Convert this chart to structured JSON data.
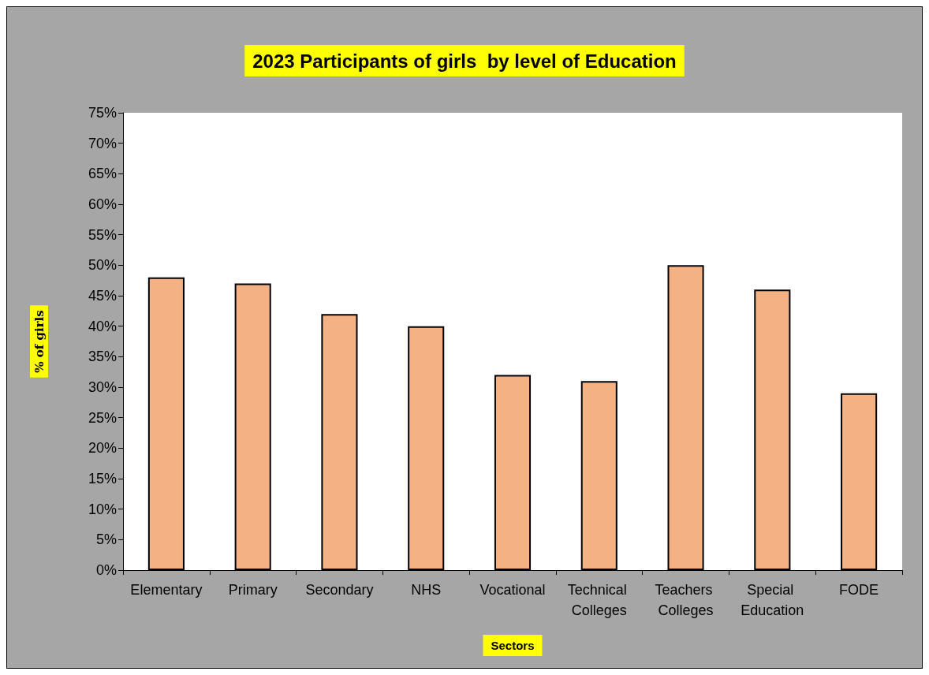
{
  "chart_data": {
    "type": "bar",
    "title": "2023 Participants of girls  by level of Education",
    "xlabel": "Sectors",
    "ylabel": "% of girls",
    "categories": [
      "Elementary",
      "Primary",
      "Secondary",
      "NHS",
      "Vocational",
      "Technical Colleges",
      "Teachers Colleges",
      "Special Education",
      "FODE"
    ],
    "values": [
      48,
      47,
      42,
      40,
      32,
      31,
      50,
      46,
      29
    ],
    "color": "#f4b183",
    "ylim": [
      0,
      75
    ],
    "yticks": [
      {
        "value": 0,
        "label": "0%"
      },
      {
        "value": 5,
        "label": "5%"
      },
      {
        "value": 10,
        "label": "10%"
      },
      {
        "value": 15,
        "label": "15%"
      },
      {
        "value": 20,
        "label": "20%"
      },
      {
        "value": 25,
        "label": "25%"
      },
      {
        "value": 30,
        "label": "30%"
      },
      {
        "value": 35,
        "label": "35%"
      },
      {
        "value": 40,
        "label": "40%"
      },
      {
        "value": 45,
        "label": "45%"
      },
      {
        "value": 50,
        "label": "50%"
      },
      {
        "value": 55,
        "label": "55%"
      },
      {
        "value": 60,
        "label": "60%"
      },
      {
        "value": 65,
        "label": "65%"
      },
      {
        "value": 70,
        "label": "70%"
      },
      {
        "value": 75,
        "label": "75%"
      }
    ],
    "grid": false
  }
}
